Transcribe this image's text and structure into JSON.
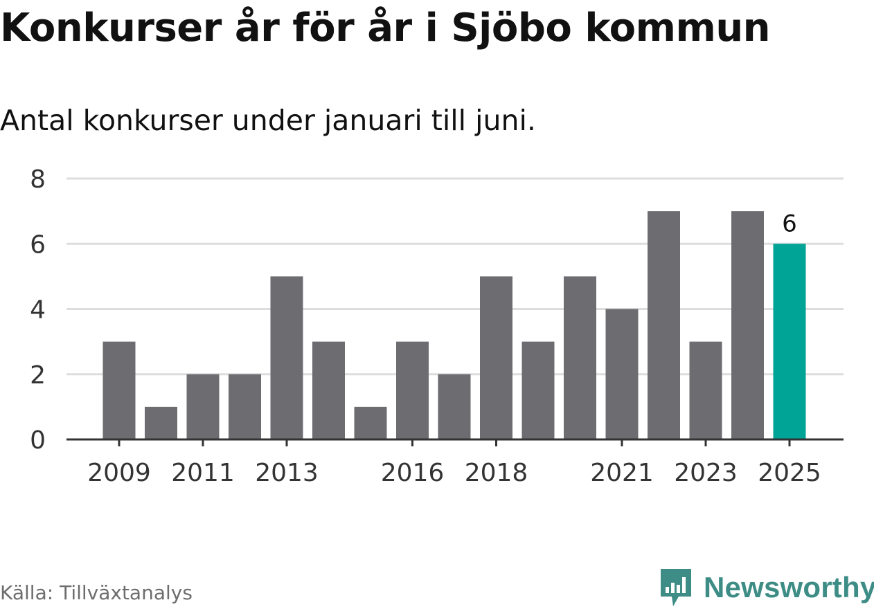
{
  "title": "Konkurser år för år i Sjöbo kommun",
  "subtitle": "Antal konkurser under januari till juni.",
  "source": "Källa: Tillväxtanalys",
  "brand": {
    "name": "Newsworthy",
    "color": "#3d8d86",
    "icon": "newsworthy-chart-bubble-icon"
  },
  "colors": {
    "bar": "#6d6c71",
    "highlight": "#00a497",
    "grid": "#dddddd",
    "axis": "#333333",
    "tick_text": "#333333"
  },
  "chart_data": {
    "type": "bar",
    "categories": [
      "2009",
      "2010",
      "2011",
      "2012",
      "2013",
      "2014",
      "2015",
      "2016",
      "2017",
      "2018",
      "2019",
      "2020",
      "2021",
      "2022",
      "2023",
      "2024",
      "2025"
    ],
    "values": [
      3,
      1,
      2,
      2,
      5,
      3,
      1,
      3,
      2,
      5,
      3,
      5,
      4,
      7,
      3,
      7,
      6
    ],
    "x_tick_labels": [
      "2009",
      "2011",
      "2013",
      "2016",
      "2018",
      "2021",
      "2023",
      "2025"
    ],
    "y_ticks": [
      0,
      2,
      4,
      6,
      8
    ],
    "ylim": [
      0,
      8
    ],
    "highlight": {
      "category": "2025",
      "label": "6"
    },
    "grid": true,
    "xlabel": "",
    "ylabel": ""
  }
}
